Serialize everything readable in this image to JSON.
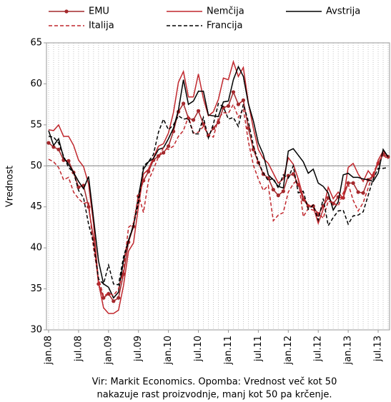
{
  "chart_data": {
    "type": "line",
    "y_label": "Vrednost",
    "source": [
      "Vir: Markit Economics. Opomba: Vrednost več kot 50",
      "nakazuje rast proizvodnje, manj kot 50 pa krčenje."
    ],
    "categories": [
      "jan.08",
      null,
      null,
      null,
      null,
      null,
      "jul.08",
      null,
      null,
      null,
      null,
      null,
      "jan.09",
      null,
      null,
      null,
      null,
      null,
      "jul.09",
      null,
      null,
      null,
      null,
      null,
      "jan.10",
      null,
      null,
      null,
      null,
      null,
      "jul.10",
      null,
      null,
      null,
      null,
      null,
      "jan.11",
      null,
      null,
      null,
      null,
      null,
      "jul.11",
      null,
      null,
      null,
      null,
      null,
      "jan.12",
      null,
      null,
      null,
      null,
      null,
      "jul.12",
      null,
      null,
      null,
      null,
      null,
      "jan.13",
      null,
      null,
      null,
      null,
      null,
      "jul.13",
      null,
      null
    ],
    "ylim": [
      30,
      65
    ],
    "yticks": [
      30,
      35,
      40,
      45,
      50,
      55,
      60,
      65
    ],
    "reference_line": 50,
    "grid": true,
    "series": [
      {
        "name": "EMU",
        "color": "#a3282c",
        "dashed": false,
        "markers": true,
        "values": [
          52.8,
          52.3,
          52.0,
          50.7,
          50.6,
          49.2,
          47.4,
          47.6,
          45.0,
          41.1,
          35.6,
          33.9,
          34.4,
          33.5,
          33.9,
          36.8,
          40.7,
          42.6,
          46.3,
          48.2,
          49.3,
          50.7,
          51.2,
          51.6,
          52.4,
          54.2,
          56.6,
          57.6,
          55.8,
          55.6,
          56.7,
          55.1,
          53.7,
          54.6,
          55.3,
          57.1,
          57.3,
          59.0,
          57.5,
          58.0,
          54.6,
          52.0,
          50.4,
          49.0,
          48.5,
          47.1,
          46.4,
          46.9,
          48.8,
          49.0,
          47.7,
          45.9,
          45.1,
          45.1,
          44.0,
          45.1,
          46.1,
          45.4,
          46.2,
          46.1,
          47.9,
          47.9,
          46.8,
          46.7,
          48.3,
          48.8,
          50.3,
          51.4,
          51.1
        ]
      },
      {
        "name": "Nemčija",
        "color": "#c0272d",
        "dashed": false,
        "markers": false,
        "values": [
          54.4,
          54.3,
          55.0,
          53.6,
          53.6,
          52.5,
          50.7,
          49.9,
          47.8,
          42.9,
          35.7,
          32.7,
          32.0,
          32.0,
          32.4,
          35.4,
          39.6,
          40.6,
          45.1,
          49.0,
          49.6,
          51.0,
          52.4,
          52.7,
          54.0,
          56.5,
          60.2,
          61.5,
          58.4,
          58.4,
          61.2,
          58.2,
          56.1,
          56.6,
          58.1,
          60.7,
          60.5,
          62.7,
          60.9,
          62.0,
          57.7,
          54.6,
          52.0,
          50.9,
          50.3,
          49.1,
          47.9,
          48.4,
          51.0,
          50.2,
          48.4,
          46.2,
          45.2,
          45.0,
          43.0,
          44.7,
          47.4,
          46.0,
          46.8,
          46.0,
          49.8,
          50.3,
          49.0,
          48.1,
          49.4,
          48.6,
          50.7,
          51.8,
          51.1
        ]
      },
      {
        "name": "Avstrija",
        "color": "#000000",
        "dashed": false,
        "markers": false,
        "values": [
          54.3,
          52.5,
          53.3,
          51.0,
          50.2,
          49.2,
          48.1,
          47.2,
          48.7,
          43.6,
          38.4,
          35.6,
          35.2,
          33.9,
          34.6,
          38.4,
          40.9,
          42.7,
          46.3,
          49.6,
          50.5,
          50.9,
          52.0,
          52.2,
          53.3,
          54.6,
          56.8,
          60.5,
          57.5,
          57.9,
          59.1,
          59.1,
          56.2,
          56.1,
          56.0,
          57.8,
          57.9,
          60.5,
          62.1,
          60.9,
          57.6,
          55.5,
          52.8,
          51.4,
          48.9,
          48.3,
          47.5,
          47.3,
          51.8,
          52.1,
          51.3,
          50.5,
          49.1,
          49.6,
          47.9,
          47.5,
          46.7,
          44.6,
          45.6,
          48.9,
          49.1,
          48.6,
          48.6,
          48.4,
          48.3,
          48.1,
          49.1,
          52.0,
          51.1
        ]
      },
      {
        "name": "Italija",
        "color": "#c0272d",
        "dashed": true,
        "markers": false,
        "values": [
          50.8,
          50.5,
          49.8,
          48.3,
          48.6,
          46.8,
          46.0,
          45.4,
          45.6,
          39.9,
          36.3,
          34.1,
          34.5,
          34.2,
          35.0,
          37.2,
          42.5,
          43.0,
          46.5,
          44.3,
          48.2,
          49.6,
          51.1,
          52.2,
          52.0,
          52.4,
          53.6,
          54.3,
          56.0,
          54.0,
          54.1,
          54.8,
          53.8,
          53.5,
          55.8,
          56.5,
          56.4,
          57.5,
          55.9,
          57.0,
          53.0,
          50.1,
          48.4,
          47.0,
          47.6,
          43.3,
          44.0,
          44.3,
          46.8,
          47.8,
          48.4,
          43.8,
          44.8,
          44.6,
          44.3,
          43.6,
          45.7,
          45.5,
          45.1,
          46.7,
          47.8,
          45.8,
          44.5,
          45.5,
          47.3,
          49.1,
          50.4,
          51.3,
          50.8
        ]
      },
      {
        "name": "Francija",
        "color": "#000000",
        "dashed": true,
        "markers": false,
        "values": [
          53.6,
          53.5,
          52.8,
          51.2,
          49.8,
          49.2,
          47.0,
          46.1,
          42.9,
          40.6,
          36.2,
          35.6,
          37.9,
          35.6,
          35.5,
          38.9,
          40.9,
          42.8,
          45.5,
          50.0,
          50.5,
          51.4,
          54.1,
          55.7,
          54.4,
          55.0,
          56.1,
          55.7,
          55.8,
          53.9,
          53.9,
          55.9,
          53.4,
          55.1,
          57.6,
          57.2,
          55.7,
          55.9,
          54.8,
          57.5,
          55.4,
          52.5,
          50.5,
          49.1,
          48.2,
          48.5,
          47.3,
          48.9,
          48.5,
          50.0,
          46.7,
          46.9,
          44.7,
          45.2,
          43.4,
          46.0,
          42.7,
          43.7,
          44.5,
          44.6,
          42.9,
          43.9,
          44.0,
          44.4,
          46.4,
          48.4,
          49.7,
          49.7,
          49.8
        ]
      }
    ]
  }
}
